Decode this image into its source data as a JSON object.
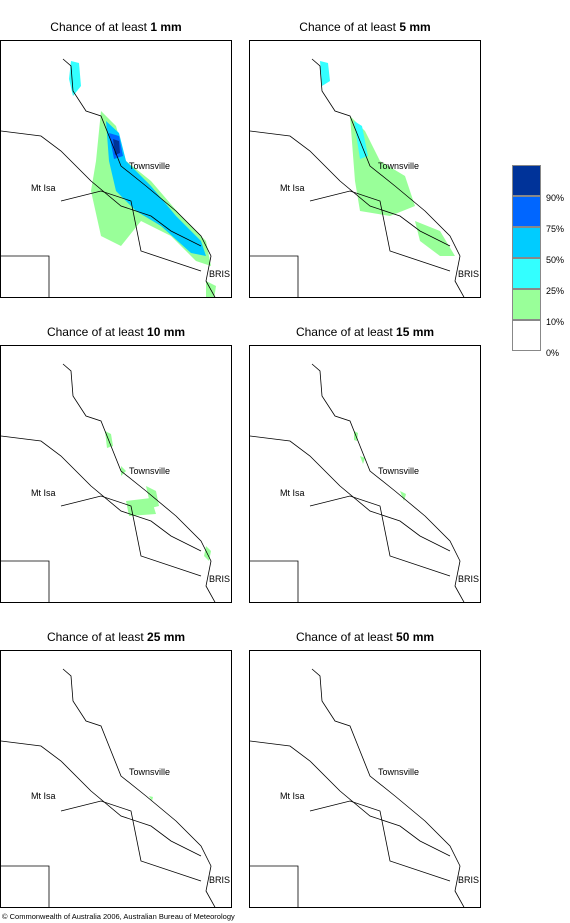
{
  "panels": [
    {
      "id": "p1",
      "prefix": "Chance of at least ",
      "amount": "1 mm"
    },
    {
      "id": "p5",
      "prefix": "Chance of at least ",
      "amount": "5 mm"
    },
    {
      "id": "p10",
      "prefix": "Chance of at least ",
      "amount": "10 mm"
    },
    {
      "id": "p15",
      "prefix": "Chance of at least ",
      "amount": "15 mm"
    },
    {
      "id": "p25",
      "prefix": "Chance of at least ",
      "amount": "25 mm"
    },
    {
      "id": "p50",
      "prefix": "Chance of at least ",
      "amount": "50 mm"
    }
  ],
  "cities": {
    "townsville": "Townsville",
    "mt_isa": "Mt Isa",
    "brisbane": "BRIS"
  },
  "legend": {
    "labels": [
      "90%",
      "75%",
      "50%",
      "25%",
      "10%",
      "0%"
    ],
    "colors": [
      "#003399",
      "#0066ff",
      "#00ccff",
      "#33ffff",
      "#99ff99",
      "#ffffff"
    ]
  },
  "footer": "© Commonwealth of Australia 2006, Australian Bureau of Meteorology"
}
